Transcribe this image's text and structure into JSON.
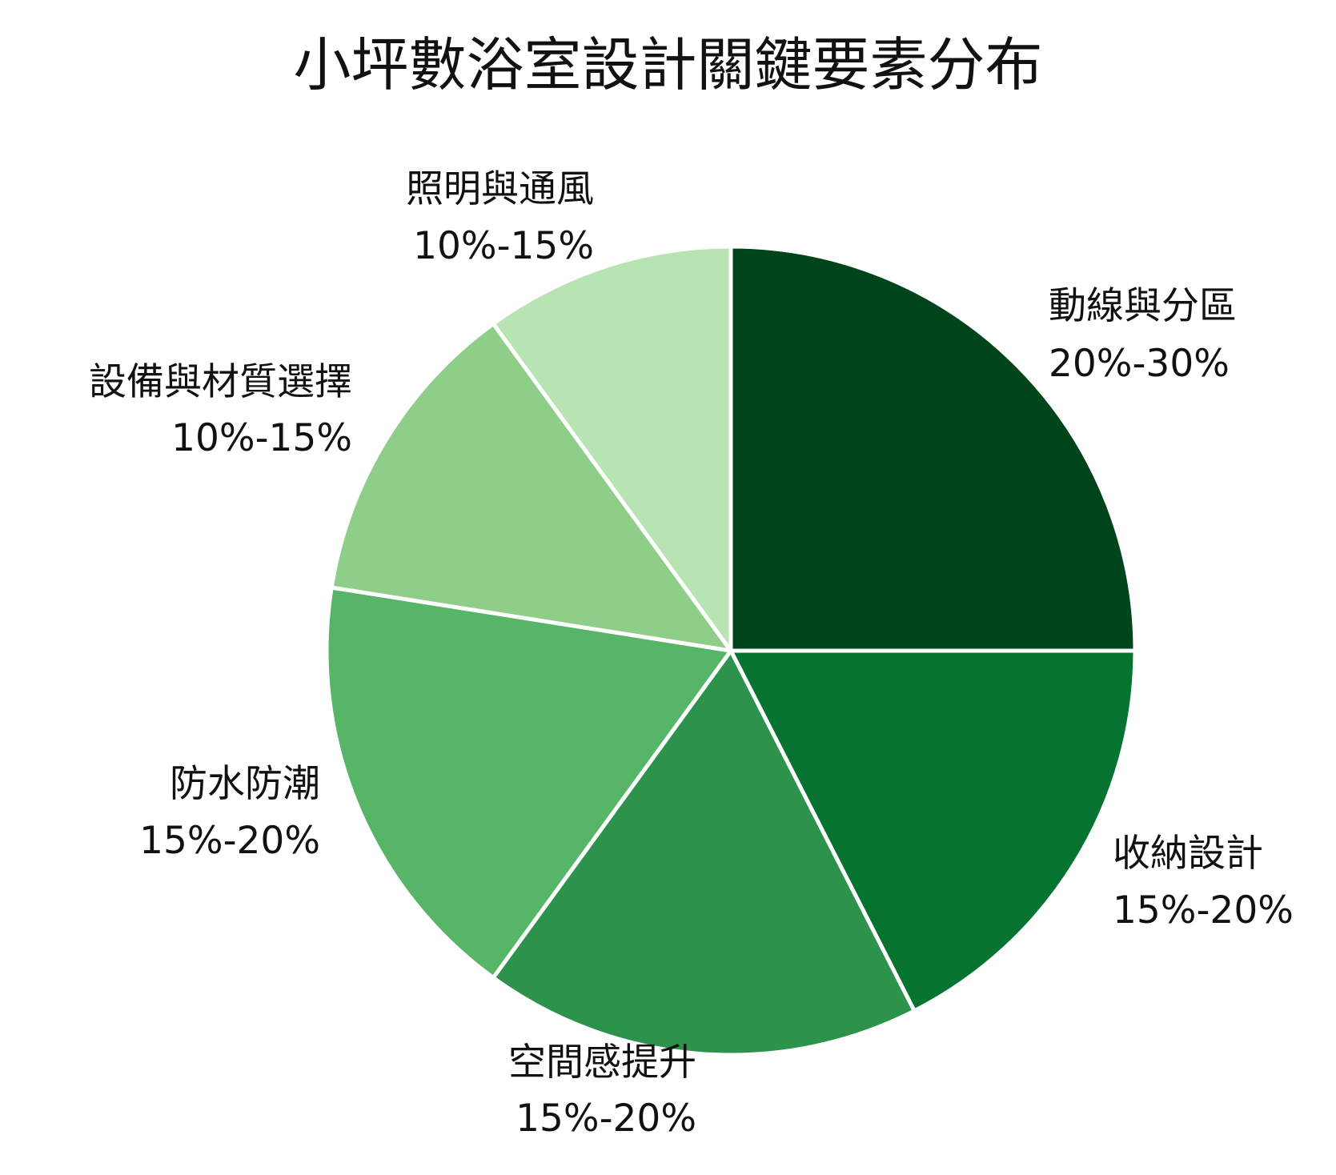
{
  "chart_data": {
    "type": "pie",
    "title": "小坪數浴室設計關鍵要素分布",
    "slices": [
      {
        "label": "動線與分區",
        "range_text": "20%-30%",
        "value": 25,
        "color": "#00441b"
      },
      {
        "label": "收納設計",
        "range_text": "15%-20%",
        "value": 17.5,
        "color": "#067330"
      },
      {
        "label": "空間感提升",
        "range_text": "15%-20%",
        "value": 17.5,
        "color": "#2d924b"
      },
      {
        "label": "防水防潮",
        "range_text": "15%-20%",
        "value": 17.5,
        "color": "#56b567"
      },
      {
        "label": "設備與材質選擇",
        "range_text": "10%-15%",
        "value": 12.5,
        "color": "#8ece88"
      },
      {
        "label": "照明與通風",
        "range_text": "10%-15%",
        "value": 10,
        "color": "#b8e3b2"
      }
    ],
    "start": "12 o'clock",
    "direction": "clockwise"
  }
}
